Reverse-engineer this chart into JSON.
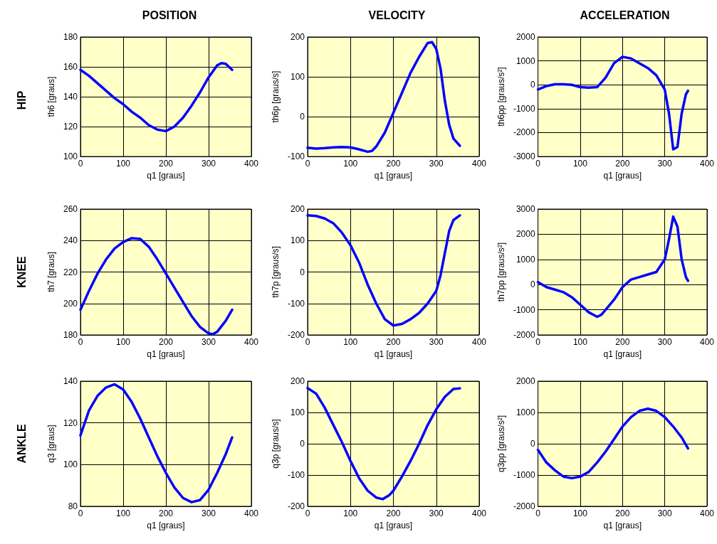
{
  "chart_data": [
    {
      "type": "line",
      "title": "POSITION",
      "annotations": [
        "HIP"
      ],
      "xlabel": "q1 [graus]",
      "ylabel": "th6 [graus]",
      "grid": true,
      "marker": "none",
      "line_style": "solid",
      "xlim": [
        0,
        400
      ],
      "xticks": [
        0,
        100,
        200,
        300,
        400
      ],
      "ylim": [
        100,
        180
      ],
      "yticks": [
        100,
        120,
        140,
        160,
        180
      ],
      "x": [
        0,
        20,
        40,
        60,
        80,
        100,
        120,
        140,
        160,
        180,
        200,
        220,
        240,
        260,
        280,
        300,
        320,
        330,
        340,
        355
      ],
      "series": [
        {
          "color": "#0000ff",
          "values": [
            158,
            154,
            149,
            144,
            139,
            135,
            130,
            126,
            121,
            118,
            117,
            120,
            126,
            134,
            143,
            153,
            161,
            162.5,
            162,
            158
          ]
        }
      ]
    },
    {
      "type": "line",
      "title": "VELOCITY",
      "xlabel": "q1 [graus]",
      "ylabel": "th6p [graus/s]",
      "grid": true,
      "marker": "none",
      "line_style": "solid",
      "xlim": [
        0,
        400
      ],
      "xticks": [
        0,
        100,
        200,
        300,
        400
      ],
      "ylim": [
        -100,
        200
      ],
      "yticks": [
        -100,
        0,
        100,
        200
      ],
      "x": [
        0,
        20,
        40,
        60,
        80,
        100,
        120,
        140,
        150,
        160,
        180,
        200,
        220,
        240,
        260,
        280,
        290,
        300,
        310,
        320,
        330,
        340,
        355
      ],
      "series": [
        {
          "color": "#0000ff",
          "values": [
            -78,
            -80,
            -79,
            -77,
            -76,
            -77,
            -82,
            -88,
            -86,
            -75,
            -40,
            10,
            60,
            110,
            150,
            185,
            187,
            170,
            120,
            40,
            -20,
            -55,
            -73
          ]
        }
      ]
    },
    {
      "type": "line",
      "title": "ACCELERATION",
      "xlabel": "q1 [graus]",
      "ylabel": "th6pp [graus/s²]",
      "grid": true,
      "marker": "none",
      "line_style": "solid",
      "xlim": [
        0,
        400
      ],
      "xticks": [
        0,
        100,
        200,
        300,
        400
      ],
      "ylim": [
        -3000,
        2000
      ],
      "yticks": [
        -3000,
        -2000,
        -1000,
        0,
        1000,
        2000
      ],
      "x": [
        0,
        20,
        40,
        60,
        80,
        100,
        120,
        140,
        160,
        180,
        200,
        220,
        240,
        260,
        280,
        300,
        310,
        320,
        330,
        340,
        350,
        355
      ],
      "series": [
        {
          "color": "#0000ff",
          "values": [
            -200,
            -50,
            20,
            20,
            0,
            -100,
            -120,
            -100,
            300,
            900,
            1170,
            1100,
            900,
            700,
            400,
            -200,
            -1200,
            -2700,
            -2600,
            -1200,
            -400,
            -250
          ]
        }
      ]
    },
    {
      "type": "line",
      "annotations": [
        "KNEE"
      ],
      "xlabel": "q1 [graus]",
      "ylabel": "th7 [graus]",
      "grid": true,
      "marker": "none",
      "line_style": "solid",
      "xlim": [
        0,
        400
      ],
      "xticks": [
        0,
        100,
        200,
        300,
        400
      ],
      "ylim": [
        180,
        260
      ],
      "yticks": [
        180,
        200,
        220,
        240,
        260
      ],
      "x": [
        0,
        20,
        40,
        60,
        80,
        100,
        120,
        140,
        160,
        180,
        200,
        220,
        240,
        260,
        280,
        300,
        310,
        320,
        340,
        355
      ],
      "series": [
        {
          "color": "#0000ff",
          "values": [
            196,
            208,
            219,
            228,
            235,
            239,
            241.5,
            241,
            236,
            228,
            219,
            210,
            201,
            192,
            185,
            181,
            180.5,
            182,
            189,
            196
          ]
        }
      ]
    },
    {
      "type": "line",
      "xlabel": "q1 [graus]",
      "ylabel": "th7p [graus/s]",
      "grid": true,
      "marker": "none",
      "line_style": "solid",
      "xlim": [
        0,
        400
      ],
      "xticks": [
        0,
        100,
        200,
        300,
        400
      ],
      "ylim": [
        -200,
        200
      ],
      "yticks": [
        -200,
        -100,
        0,
        100,
        200
      ],
      "x": [
        0,
        20,
        40,
        60,
        80,
        100,
        120,
        140,
        160,
        180,
        200,
        220,
        240,
        260,
        280,
        300,
        310,
        320,
        330,
        340,
        355
      ],
      "series": [
        {
          "color": "#0000ff",
          "values": [
            180,
            178,
            170,
            155,
            125,
            85,
            30,
            -40,
            -100,
            -150,
            -170,
            -165,
            -150,
            -130,
            -100,
            -60,
            -10,
            60,
            130,
            165,
            180
          ]
        }
      ]
    },
    {
      "type": "line",
      "xlabel": "q1 [graus]",
      "ylabel": "th7pp [graus/s²]",
      "grid": true,
      "marker": "none",
      "line_style": "solid",
      "xlim": [
        0,
        400
      ],
      "xticks": [
        0,
        100,
        200,
        300,
        400
      ],
      "ylim": [
        -2000,
        3000
      ],
      "yticks": [
        -2000,
        -1000,
        0,
        1000,
        2000,
        3000
      ],
      "x": [
        0,
        20,
        40,
        60,
        80,
        100,
        120,
        140,
        150,
        160,
        180,
        200,
        220,
        240,
        260,
        280,
        300,
        310,
        320,
        330,
        340,
        350,
        355
      ],
      "series": [
        {
          "color": "#0000ff",
          "values": [
            100,
            -100,
            -200,
            -300,
            -500,
            -800,
            -1100,
            -1280,
            -1200,
            -1000,
            -600,
            -100,
            200,
            300,
            400,
            500,
            1000,
            1800,
            2700,
            2300,
            1000,
            300,
            150
          ]
        }
      ]
    },
    {
      "type": "line",
      "annotations": [
        "ANKLE"
      ],
      "xlabel": "q1 [graus]",
      "ylabel": "q3 [graus]",
      "grid": true,
      "marker": "none",
      "line_style": "solid",
      "xlim": [
        0,
        400
      ],
      "xticks": [
        0,
        100,
        200,
        300,
        400
      ],
      "ylim": [
        80,
        140
      ],
      "yticks": [
        80,
        100,
        120,
        140
      ],
      "x": [
        0,
        20,
        40,
        60,
        80,
        100,
        120,
        140,
        160,
        180,
        200,
        220,
        240,
        260,
        280,
        300,
        320,
        340,
        355
      ],
      "series": [
        {
          "color": "#0000ff",
          "values": [
            114,
            126,
            133,
            137,
            138.5,
            136,
            130,
            122,
            113,
            104,
            96,
            89,
            84,
            82,
            83,
            88,
            96,
            105,
            113
          ]
        }
      ]
    },
    {
      "type": "line",
      "xlabel": "q1 [graus]",
      "ylabel": "q3p [graus/s]",
      "grid": true,
      "marker": "none",
      "line_style": "solid",
      "xlim": [
        0,
        400
      ],
      "xticks": [
        0,
        100,
        200,
        300,
        400
      ],
      "ylim": [
        -200,
        200
      ],
      "yticks": [
        -200,
        -100,
        0,
        100,
        200
      ],
      "x": [
        0,
        20,
        40,
        60,
        80,
        100,
        120,
        140,
        160,
        175,
        190,
        200,
        220,
        240,
        260,
        280,
        300,
        320,
        340,
        355
      ],
      "series": [
        {
          "color": "#0000ff",
          "values": [
            178,
            160,
            115,
            60,
            5,
            -55,
            -110,
            -150,
            -172,
            -177,
            -165,
            -150,
            -105,
            -55,
            0,
            60,
            110,
            150,
            175,
            177
          ]
        }
      ]
    },
    {
      "type": "line",
      "xlabel": "q1 [graus]",
      "ylabel": "q3pp [graus/s²]",
      "grid": true,
      "marker": "none",
      "line_style": "solid",
      "xlim": [
        0,
        400
      ],
      "xticks": [
        0,
        100,
        200,
        300,
        400
      ],
      "ylim": [
        -2000,
        2000
      ],
      "yticks": [
        -2000,
        -1000,
        0,
        1000,
        2000
      ],
      "x": [
        0,
        20,
        40,
        60,
        80,
        100,
        120,
        140,
        160,
        180,
        200,
        220,
        240,
        260,
        280,
        300,
        320,
        340,
        355
      ],
      "series": [
        {
          "color": "#0000ff",
          "values": [
            -200,
            -600,
            -850,
            -1050,
            -1100,
            -1050,
            -900,
            -600,
            -250,
            150,
            550,
            850,
            1050,
            1120,
            1050,
            850,
            550,
            200,
            -150
          ]
        }
      ]
    }
  ]
}
